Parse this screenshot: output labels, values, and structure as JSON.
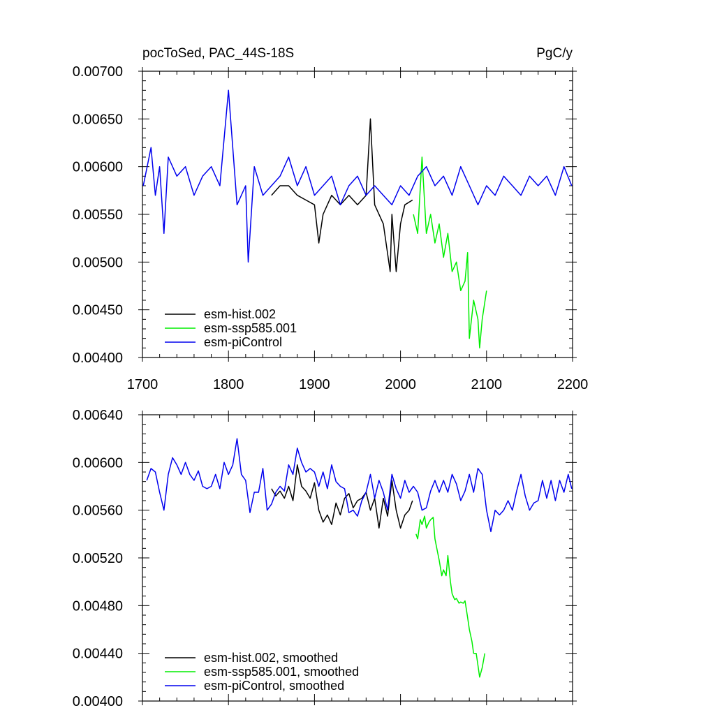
{
  "colors": {
    "esm_hist": "#000000",
    "esm_ssp585": "#00ee00",
    "esm_piControl": "#0000ee"
  },
  "chart_data": [
    {
      "type": "line",
      "title_left": "pocToSed, PAC_44S-18S",
      "title_right": "PgC/y",
      "xlabel": "",
      "ylabel": "",
      "xlim": [
        1700,
        2200
      ],
      "ylim": [
        0.004,
        0.007
      ],
      "x_ticks": [
        1700,
        1800,
        1900,
        2000,
        2100,
        2200
      ],
      "x_tick_labels": [
        "1700",
        "1800",
        "1900",
        "2000",
        "2100",
        "2200"
      ],
      "y_ticks": [
        0.004,
        0.0045,
        0.005,
        0.0055,
        0.006,
        0.0065,
        0.007
      ],
      "y_tick_labels": [
        "0.00400",
        "0.00450",
        "0.00500",
        "0.00550",
        "0.00600",
        "0.00650",
        "0.00700"
      ],
      "grid": false,
      "legend_position": "bottom-left",
      "series": [
        {
          "name": "esm-hist.002",
          "color": "#000000",
          "x": [
            1850,
            1860,
            1870,
            1880,
            1890,
            1900,
            1905,
            1910,
            1920,
            1930,
            1940,
            1950,
            1960,
            1965,
            1970,
            1980,
            1988,
            1990,
            1995,
            2000,
            2005,
            2014
          ],
          "y": [
            0.0057,
            0.0058,
            0.0058,
            0.0057,
            0.00565,
            0.0056,
            0.0052,
            0.0055,
            0.0057,
            0.0056,
            0.0057,
            0.0056,
            0.0057,
            0.0065,
            0.0056,
            0.0054,
            0.0049,
            0.0055,
            0.0049,
            0.0054,
            0.0056,
            0.00565
          ]
        },
        {
          "name": "esm-ssp585.001",
          "color": "#00ee00",
          "x": [
            2015,
            2020,
            2025,
            2030,
            2035,
            2040,
            2045,
            2050,
            2055,
            2060,
            2065,
            2070,
            2075,
            2078,
            2080,
            2085,
            2090,
            2092,
            2095,
            2100
          ],
          "y": [
            0.0055,
            0.0053,
            0.0061,
            0.0053,
            0.0055,
            0.0052,
            0.0054,
            0.00505,
            0.0053,
            0.0049,
            0.005,
            0.0047,
            0.0048,
            0.0051,
            0.0042,
            0.0046,
            0.0044,
            0.0041,
            0.0044,
            0.0047
          ]
        },
        {
          "name": "esm-piControl",
          "color": "#0000ee",
          "x": [
            1701,
            1710,
            1715,
            1720,
            1725,
            1730,
            1740,
            1750,
            1760,
            1770,
            1780,
            1790,
            1800,
            1810,
            1820,
            1823,
            1830,
            1840,
            1850,
            1860,
            1870,
            1880,
            1890,
            1900,
            1910,
            1920,
            1930,
            1940,
            1950,
            1960,
            1970,
            1980,
            1990,
            2000,
            2010,
            2020,
            2030,
            2040,
            2050,
            2060,
            2070,
            2080,
            2090,
            2100,
            2110,
            2120,
            2130,
            2140,
            2150,
            2160,
            2170,
            2180,
            2190,
            2199
          ],
          "y": [
            0.0058,
            0.0062,
            0.0057,
            0.006,
            0.0053,
            0.0061,
            0.0059,
            0.006,
            0.0057,
            0.0059,
            0.006,
            0.0058,
            0.0068,
            0.0056,
            0.0058,
            0.005,
            0.006,
            0.0057,
            0.0058,
            0.0059,
            0.0061,
            0.0058,
            0.006,
            0.0057,
            0.0058,
            0.0059,
            0.0056,
            0.0058,
            0.0059,
            0.0057,
            0.0058,
            0.0057,
            0.0056,
            0.0058,
            0.0057,
            0.0059,
            0.006,
            0.0058,
            0.0059,
            0.0057,
            0.006,
            0.0058,
            0.0056,
            0.0058,
            0.0057,
            0.0059,
            0.0058,
            0.0057,
            0.0059,
            0.0058,
            0.0059,
            0.0057,
            0.006,
            0.0058
          ]
        }
      ]
    },
    {
      "type": "line",
      "title_left": "",
      "title_right": "",
      "xlabel": "",
      "ylabel": "",
      "xlim": [
        1700,
        2200
      ],
      "ylim": [
        0.004,
        0.0064
      ],
      "x_ticks": [
        1700,
        1800,
        1900,
        2000,
        2100,
        2200
      ],
      "x_tick_labels": [],
      "y_ticks": [
        0.004,
        0.0044,
        0.0048,
        0.0052,
        0.0056,
        0.006,
        0.0064
      ],
      "y_tick_labels": [
        "0.00400",
        "0.00440",
        "0.00480",
        "0.00520",
        "0.00560",
        "0.00600",
        "0.00640"
      ],
      "grid": false,
      "legend_position": "bottom-left",
      "series": [
        {
          "name": "esm-hist.002, smoothed",
          "color": "#000000",
          "x": [
            1850,
            1855,
            1860,
            1865,
            1870,
            1875,
            1880,
            1885,
            1890,
            1895,
            1900,
            1905,
            1910,
            1915,
            1920,
            1925,
            1930,
            1935,
            1940,
            1945,
            1950,
            1955,
            1960,
            1965,
            1970,
            1975,
            1980,
            1985,
            1990,
            1995,
            2000,
            2005,
            2010,
            2014
          ],
          "y": [
            0.00578,
            0.00572,
            0.00576,
            0.0057,
            0.0058,
            0.00568,
            0.00598,
            0.0058,
            0.00576,
            0.0057,
            0.00583,
            0.0056,
            0.0055,
            0.00556,
            0.00548,
            0.00566,
            0.00556,
            0.0057,
            0.00574,
            0.00562,
            0.00568,
            0.0057,
            0.00575,
            0.0056,
            0.0057,
            0.00545,
            0.0057,
            0.00555,
            0.00585,
            0.0056,
            0.00545,
            0.00556,
            0.0056,
            0.00568
          ]
        },
        {
          "name": "esm-ssp585.001, smoothed",
          "color": "#00ee00",
          "x": [
            2018,
            2020,
            2023,
            2025,
            2028,
            2030,
            2033,
            2035,
            2038,
            2040,
            2043,
            2045,
            2048,
            2050,
            2053,
            2055,
            2058,
            2060,
            2063,
            2065,
            2068,
            2070,
            2073,
            2075,
            2078,
            2080,
            2083,
            2085,
            2088,
            2090,
            2092,
            2095,
            2098
          ],
          "y": [
            0.0054,
            0.00536,
            0.00552,
            0.00548,
            0.00555,
            0.00545,
            0.0055,
            0.00552,
            0.00554,
            0.00536,
            0.00525,
            0.00518,
            0.00505,
            0.0051,
            0.00505,
            0.00522,
            0.005,
            0.0049,
            0.00485,
            0.00486,
            0.00482,
            0.00483,
            0.00482,
            0.00484,
            0.0047,
            0.0046,
            0.0045,
            0.0044,
            0.0044,
            0.0043,
            0.0042,
            0.00428,
            0.0044
          ]
        },
        {
          "name": "esm-piControl, smoothed",
          "color": "#0000ee",
          "x": [
            1705,
            1710,
            1715,
            1720,
            1725,
            1730,
            1735,
            1740,
            1745,
            1750,
            1755,
            1760,
            1765,
            1770,
            1775,
            1780,
            1785,
            1790,
            1795,
            1800,
            1805,
            1810,
            1815,
            1820,
            1825,
            1830,
            1835,
            1840,
            1845,
            1850,
            1855,
            1860,
            1865,
            1870,
            1875,
            1880,
            1885,
            1890,
            1895,
            1900,
            1905,
            1910,
            1915,
            1920,
            1925,
            1930,
            1935,
            1940,
            1945,
            1950,
            1955,
            1960,
            1965,
            1970,
            1975,
            1980,
            1985,
            1990,
            1995,
            2000,
            2005,
            2010,
            2015,
            2020,
            2025,
            2030,
            2035,
            2040,
            2045,
            2050,
            2055,
            2060,
            2065,
            2070,
            2075,
            2080,
            2085,
            2090,
            2095,
            2100,
            2105,
            2110,
            2115,
            2120,
            2125,
            2130,
            2135,
            2140,
            2145,
            2150,
            2155,
            2160,
            2165,
            2170,
            2175,
            2180,
            2185,
            2190,
            2195,
            2199
          ],
          "y": [
            0.00585,
            0.00595,
            0.00592,
            0.00575,
            0.0056,
            0.0059,
            0.00604,
            0.00598,
            0.0059,
            0.006,
            0.0059,
            0.00585,
            0.00593,
            0.0058,
            0.00578,
            0.0058,
            0.0059,
            0.00578,
            0.006,
            0.0059,
            0.00598,
            0.0062,
            0.0059,
            0.00585,
            0.00558,
            0.00575,
            0.00575,
            0.00595,
            0.0056,
            0.00565,
            0.00575,
            0.0058,
            0.00576,
            0.00598,
            0.0059,
            0.00612,
            0.006,
            0.00592,
            0.00595,
            0.00592,
            0.0058,
            0.00592,
            0.00578,
            0.00598,
            0.00584,
            0.0058,
            0.00578,
            0.00558,
            0.0056,
            0.00555,
            0.00568,
            0.00575,
            0.0059,
            0.0057,
            0.00585,
            0.00575,
            0.0056,
            0.0059,
            0.00578,
            0.0057,
            0.00585,
            0.00575,
            0.0058,
            0.00575,
            0.0056,
            0.00562,
            0.00576,
            0.00585,
            0.00575,
            0.00585,
            0.00575,
            0.0059,
            0.00582,
            0.00568,
            0.00576,
            0.0059,
            0.00575,
            0.00595,
            0.0059,
            0.0056,
            0.00542,
            0.0056,
            0.00556,
            0.0056,
            0.00568,
            0.0056,
            0.00576,
            0.0059,
            0.00572,
            0.0056,
            0.00566,
            0.00568,
            0.00585,
            0.0057,
            0.00585,
            0.00568,
            0.00585,
            0.00575,
            0.0059,
            0.00578
          ]
        }
      ]
    }
  ]
}
